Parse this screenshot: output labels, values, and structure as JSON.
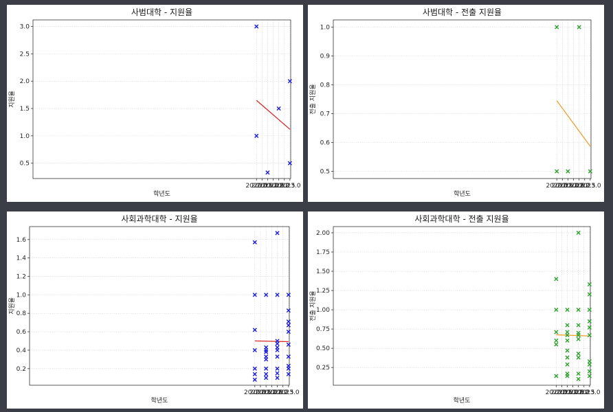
{
  "chart_data": [
    {
      "type": "scatter",
      "title": "사범대학 - 지원율",
      "xlabel": "학년도",
      "ylabel": "지원율",
      "xlim": [
        1999.95,
        2023.07
      ],
      "ylim": [
        0.22,
        3.12
      ],
      "xticks": [
        2020.0,
        2020.5,
        2021.0,
        2021.5,
        2022.0,
        2022.5,
        2023.0
      ],
      "xtick_labels": [
        "2020.0",
        "2020.5",
        "2021.0",
        "2021.5",
        "2022.0",
        "2022.5",
        "2023.0"
      ],
      "yticks": [
        0.5,
        1.0,
        1.5,
        2.0,
        2.5,
        3.0
      ],
      "ytick_labels": [
        "0.5",
        "1.0",
        "1.5",
        "2.0",
        "2.5",
        "3.0"
      ],
      "marker_color": "#1a1ad6",
      "line_color": "#d62728",
      "points": [
        [
          2020,
          3.0
        ],
        [
          2020,
          1.0
        ],
        [
          2021,
          0.33
        ],
        [
          2022,
          1.5
        ],
        [
          2023,
          2.0
        ],
        [
          2023,
          0.5
        ]
      ],
      "trend": [
        [
          2020,
          1.65
        ],
        [
          2023,
          1.12
        ]
      ],
      "grid": true
    },
    {
      "type": "scatter",
      "title": "사범대학 - 전출 지원율",
      "xlabel": "학년도",
      "ylabel": "전출 지원율",
      "xlim": [
        1999.95,
        2023.07
      ],
      "ylim": [
        0.475,
        1.025
      ],
      "xticks": [
        2020.0,
        2020.5,
        2021.0,
        2021.5,
        2022.0,
        2022.5,
        2023.0
      ],
      "xtick_labels": [
        "2020.0",
        "2020.5",
        "2021.0",
        "2021.5",
        "2022.0",
        "2022.5",
        "2023.0"
      ],
      "yticks": [
        0.5,
        0.6,
        0.7,
        0.8,
        0.9,
        1.0
      ],
      "ytick_labels": [
        "0.5",
        "0.6",
        "0.7",
        "0.8",
        "0.9",
        "1.0"
      ],
      "marker_color": "#2ca02c",
      "line_color": "#f0a030",
      "points": [
        [
          2020,
          1.0
        ],
        [
          2020,
          0.5
        ],
        [
          2021,
          0.5
        ],
        [
          2022,
          1.0
        ],
        [
          2023,
          0.5
        ]
      ],
      "trend": [
        [
          2020,
          0.745
        ],
        [
          2023,
          0.587
        ]
      ],
      "grid": true
    },
    {
      "type": "scatter",
      "title": "사회과학대학 - 지원율",
      "xlabel": "학년도",
      "ylabel": "지원율",
      "xlim": [
        1999.95,
        2023.07
      ],
      "ylim": [
        0.02,
        1.74
      ],
      "xticks": [
        2020.0,
        2020.5,
        2021.0,
        2021.5,
        2022.0,
        2022.5,
        2023.0
      ],
      "xtick_labels": [
        "2020.0",
        "2020.5",
        "2021.0",
        "2021.5",
        "2022.0",
        "2022.5",
        "2023.0"
      ],
      "yticks": [
        0.2,
        0.4,
        0.6,
        0.8,
        1.0,
        1.2,
        1.4,
        1.6
      ],
      "ytick_labels": [
        "0.2",
        "0.4",
        "0.6",
        "0.8",
        "1.0",
        "1.2",
        "1.4",
        "1.6"
      ],
      "marker_color": "#1a1ad6",
      "line_color": "#d62728",
      "points": [
        [
          2020,
          1.57
        ],
        [
          2020,
          1.0
        ],
        [
          2020,
          0.62
        ],
        [
          2020,
          0.4
        ],
        [
          2020,
          0.2
        ],
        [
          2020,
          0.14
        ],
        [
          2020,
          0.08
        ],
        [
          2021,
          1.0
        ],
        [
          2021,
          0.43
        ],
        [
          2021,
          0.4
        ],
        [
          2021,
          0.38
        ],
        [
          2021,
          0.33
        ],
        [
          2021,
          0.3
        ],
        [
          2021,
          0.2
        ],
        [
          2021,
          0.14
        ],
        [
          2021,
          0.1
        ],
        [
          2022,
          1.67
        ],
        [
          2022,
          1.0
        ],
        [
          2022,
          0.5
        ],
        [
          2022,
          0.47
        ],
        [
          2022,
          0.43
        ],
        [
          2022,
          0.4
        ],
        [
          2022,
          0.33
        ],
        [
          2022,
          0.2
        ],
        [
          2022,
          0.15
        ],
        [
          2022,
          0.1
        ],
        [
          2023,
          1.0
        ],
        [
          2023,
          0.83
        ],
        [
          2023,
          0.71
        ],
        [
          2023,
          0.67
        ],
        [
          2023,
          0.6
        ],
        [
          2023,
          0.46
        ],
        [
          2023,
          0.33
        ],
        [
          2023,
          0.23
        ],
        [
          2023,
          0.2
        ],
        [
          2023,
          0.14
        ]
      ],
      "trend": [
        [
          2020,
          0.5
        ],
        [
          2023,
          0.493
        ]
      ],
      "grid": true
    },
    {
      "type": "scatter",
      "title": "사회과학대학 - 전출 지원율",
      "xlabel": "학년도",
      "ylabel": "전출 지원율",
      "xlim": [
        1999.95,
        2023.07
      ],
      "ylim": [
        0.02,
        2.08
      ],
      "xticks": [
        2020.0,
        2020.5,
        2021.0,
        2021.5,
        2022.0,
        2022.5,
        2023.0
      ],
      "xtick_labels": [
        "2020.0",
        "2020.5",
        "2021.0",
        "2021.5",
        "2022.0",
        "2022.5",
        "2023.0"
      ],
      "yticks": [
        0.25,
        0.5,
        0.75,
        1.0,
        1.25,
        1.5,
        1.75,
        2.0
      ],
      "ytick_labels": [
        "0.25",
        "0.50",
        "0.75",
        "1.00",
        "1.25",
        "1.50",
        "1.75",
        "2.00"
      ],
      "marker_color": "#2ca02c",
      "line_color": "#f0a030",
      "points": [
        [
          2020,
          1.4
        ],
        [
          2020,
          1.0
        ],
        [
          2020,
          0.71
        ],
        [
          2020,
          0.6
        ],
        [
          2020,
          0.55
        ],
        [
          2020,
          0.14
        ],
        [
          2021,
          1.0
        ],
        [
          2021,
          0.8
        ],
        [
          2021,
          0.71
        ],
        [
          2021,
          0.67
        ],
        [
          2021,
          0.6
        ],
        [
          2021,
          0.47
        ],
        [
          2021,
          0.38
        ],
        [
          2021,
          0.29
        ],
        [
          2021,
          0.17
        ],
        [
          2021,
          0.14
        ],
        [
          2022,
          2.0
        ],
        [
          2022,
          1.0
        ],
        [
          2022,
          0.8
        ],
        [
          2022,
          0.7
        ],
        [
          2022,
          0.67
        ],
        [
          2022,
          0.62
        ],
        [
          2022,
          0.43
        ],
        [
          2022,
          0.38
        ],
        [
          2022,
          0.17
        ],
        [
          2022,
          0.1
        ],
        [
          2023,
          1.33
        ],
        [
          2023,
          1.2
        ],
        [
          2023,
          1.0
        ],
        [
          2023,
          0.85
        ],
        [
          2023,
          0.77
        ],
        [
          2023,
          0.67
        ],
        [
          2023,
          0.33
        ],
        [
          2023,
          0.29
        ],
        [
          2023,
          0.2
        ],
        [
          2023,
          0.14
        ]
      ],
      "trend": [
        [
          2020,
          0.675
        ],
        [
          2023,
          0.66
        ]
      ],
      "grid": true
    }
  ]
}
